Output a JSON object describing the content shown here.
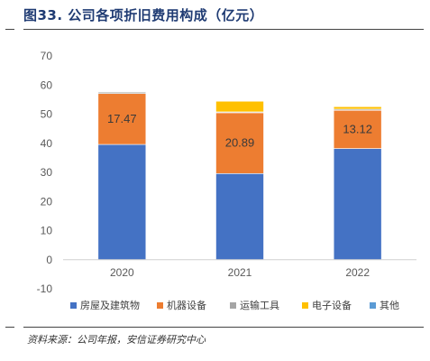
{
  "header": {
    "title": "图33. 公司各项折旧费用构成（亿元）"
  },
  "footer": {
    "source": "资料来源：公司年报，安信证券研究中心"
  },
  "chart_data": {
    "type": "bar",
    "stacked": true,
    "categories": [
      "2020",
      "2021",
      "2022"
    ],
    "series": [
      {
        "name": "房屋及建筑物",
        "color": "#4472C4",
        "values": [
          39.6,
          29.6,
          38.2
        ]
      },
      {
        "name": "机器设备",
        "color": "#ED7D31",
        "values": [
          17.47,
          20.89,
          13.12
        ]
      },
      {
        "name": "运输工具",
        "color": "#A5A5A5",
        "values": [
          0.5,
          0.3,
          0.4
        ]
      },
      {
        "name": "电子设备",
        "color": "#FFC000",
        "values": [
          0.2,
          3.7,
          0.9
        ]
      },
      {
        "name": "其他",
        "color": "#5B9BD5",
        "values": [
          0.1,
          0.1,
          0.1
        ]
      }
    ],
    "data_labels": {
      "series_index": 1,
      "texts": [
        "17.47",
        "20.89",
        "13.12"
      ]
    },
    "yticks": [
      "-10",
      "0",
      "10",
      "20",
      "30",
      "40",
      "50",
      "60",
      "70"
    ],
    "ylim": [
      -10,
      70
    ],
    "grid": false,
    "legend": "bottom"
  }
}
